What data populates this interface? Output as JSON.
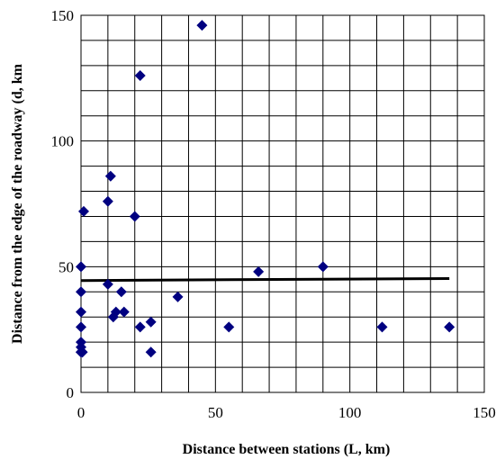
{
  "chart_data": {
    "type": "scatter",
    "title": "",
    "xlabel": "Distance between stations (L, km)",
    "ylabel": "Distance from the edge of the roadway (d, km",
    "xlim": [
      0,
      150
    ],
    "ylim": [
      0,
      150
    ],
    "x_ticks": [
      "0",
      "50",
      "100",
      "150"
    ],
    "y_ticks": [
      "0",
      "50",
      "100",
      "150"
    ],
    "grid": true,
    "colors": {
      "marker": "#000080",
      "trendline": "#000000"
    },
    "series": [
      {
        "x": [
          0,
          0,
          0,
          0,
          0,
          0,
          0,
          0,
          0.5,
          0.5,
          1,
          10,
          10,
          11,
          12,
          13,
          15,
          16,
          20,
          22,
          22,
          26,
          26,
          36,
          45,
          55,
          66,
          90,
          112,
          137
        ],
        "y": [
          50,
          40,
          32,
          26,
          20,
          18,
          16,
          16,
          16,
          16,
          72,
          76,
          43,
          86,
          30,
          32,
          40,
          32,
          70,
          26,
          126,
          16,
          28,
          38,
          146,
          26,
          48,
          50,
          26,
          26
        ]
      }
    ],
    "trendline": {
      "x": [
        0,
        137
      ],
      "y": [
        44.5,
        45.3
      ]
    }
  }
}
